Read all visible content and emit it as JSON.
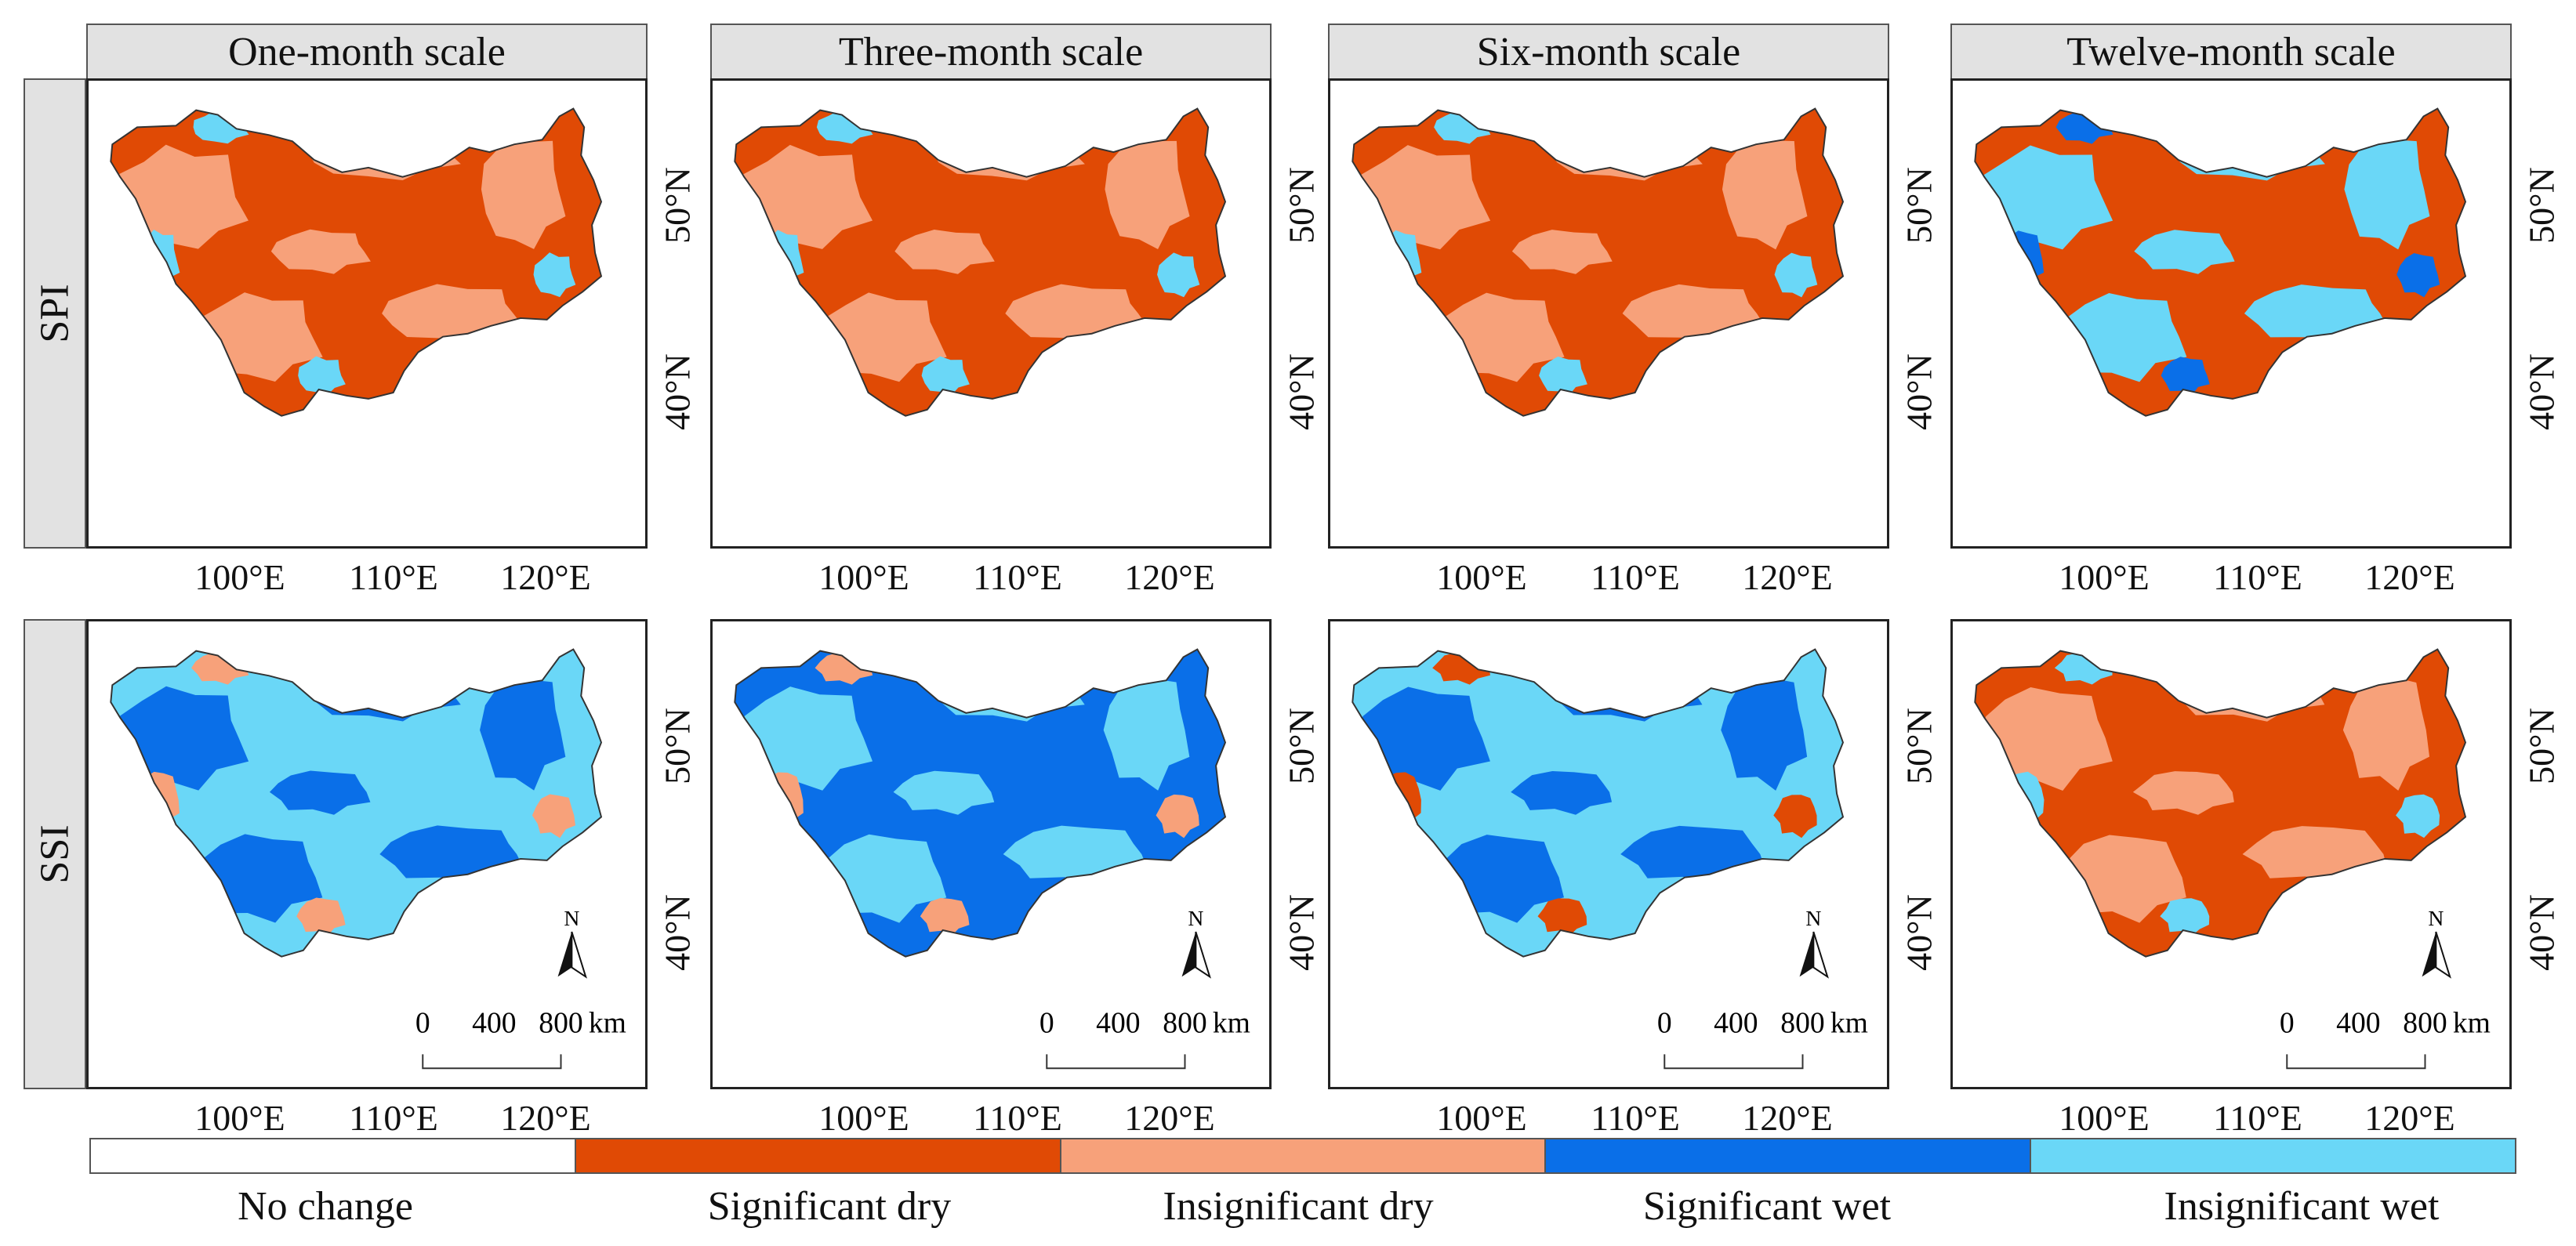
{
  "columns": [
    "One-month scale",
    "Three-month scale",
    "Six-month scale",
    "Twelve-month scale"
  ],
  "rows": [
    "SPI",
    "SSI"
  ],
  "lon_labels": [
    "100°E",
    "110°E",
    "120°E"
  ],
  "lat_labels": [
    "50°N",
    "40°N"
  ],
  "north_label": "N",
  "scale_bar": {
    "labels": [
      "0",
      "400",
      "800"
    ],
    "unit": "km"
  },
  "legend": [
    {
      "label": "No change",
      "color": "#ffffff"
    },
    {
      "label": "Significant dry",
      "color": "#e04a05"
    },
    {
      "label": "Insignificant dry",
      "color": "#f7a17a"
    },
    {
      "label": "Significant wet",
      "color": "#0a6fe8"
    },
    {
      "label": "Insignificant wet",
      "color": "#6ad7f7"
    }
  ],
  "panels": [
    {
      "row": "SPI",
      "column": "One-month scale",
      "dominant": "Significant dry",
      "secondary": "Insignificant dry",
      "accent": "Insignificant wet"
    },
    {
      "row": "SPI",
      "column": "Three-month scale",
      "dominant": "Significant dry",
      "secondary": "Insignificant dry",
      "accent": "Insignificant wet"
    },
    {
      "row": "SPI",
      "column": "Six-month scale",
      "dominant": "Significant dry",
      "secondary": "Insignificant dry",
      "accent": "Insignificant wet"
    },
    {
      "row": "SPI",
      "column": "Twelve-month scale",
      "dominant": "Significant dry",
      "secondary": "Insignificant wet",
      "accent": "Significant wet"
    },
    {
      "row": "SSI",
      "column": "One-month scale",
      "dominant": "Insignificant wet",
      "secondary": "Significant wet",
      "accent": "Insignificant dry"
    },
    {
      "row": "SSI",
      "column": "Three-month scale",
      "dominant": "Significant wet",
      "secondary": "Insignificant wet",
      "accent": "Insignificant dry"
    },
    {
      "row": "SSI",
      "column": "Six-month scale",
      "dominant": "Insignificant wet",
      "secondary": "Significant wet",
      "accent": "Significant dry"
    },
    {
      "row": "SSI",
      "column": "Twelve-month scale",
      "dominant": "Significant dry",
      "secondary": "Insignificant dry",
      "accent": "Insignificant wet"
    }
  ]
}
